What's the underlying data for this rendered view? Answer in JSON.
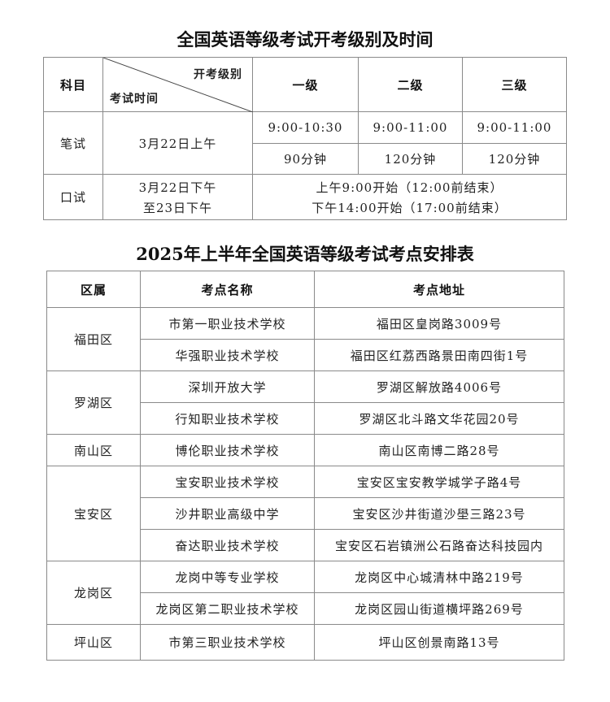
{
  "schedule": {
    "title": "全国英语等级考试开考级别及时间",
    "header": {
      "subject": "科目",
      "level_label": "开考级别",
      "time_label": "考试时间",
      "levels": [
        "一级",
        "二级",
        "三级"
      ]
    },
    "written": {
      "subject": "笔试",
      "date": "3月22日上午",
      "times": [
        "9:00-10:30",
        "9:00-11:00",
        "9:00-11:00"
      ],
      "durations": [
        "90分钟",
        "120分钟",
        "120分钟"
      ]
    },
    "oral": {
      "subject": "口试",
      "date_line1": "3月22日下午",
      "date_line2": "至23日下午",
      "session1": "上午9:00开始（12:00前结束）",
      "session2": "下午14:00开始（17:00前结束）"
    }
  },
  "venues": {
    "title": "2025年上半年全国英语等级考试考点安排表",
    "headers": [
      "区属",
      "考点名称",
      "考点地址"
    ],
    "districts": [
      "福田区",
      "罗湖区",
      "南山区",
      "宝安区",
      "龙岗区",
      "坪山区"
    ],
    "rows": [
      {
        "name": "市第一职业技术学校",
        "address": "福田区皇岗路3009号"
      },
      {
        "name": "华强职业技术学校",
        "address": "福田区红荔西路景田南四街1号"
      },
      {
        "name": "深圳开放大学",
        "address": "罗湖区解放路4006号"
      },
      {
        "name": "行知职业技术学校",
        "address": "罗湖区北斗路文华花园20号"
      },
      {
        "name": "博伦职业技术学校",
        "address": "南山区南博二路28号"
      },
      {
        "name": "宝安职业技术学校",
        "address": "宝安区宝安教学城学子路4号"
      },
      {
        "name": "沙井职业高级中学",
        "address": "宝安区沙井街道沙壆三路23号"
      },
      {
        "name": "奋达职业技术学校",
        "address": "宝安区石岩镇洲公石路奋达科技园内"
      },
      {
        "name": "龙岗中等专业学校",
        "address": "龙岗区中心城清林中路219号"
      },
      {
        "name": "龙岗区第二职业技术学校",
        "address": "龙岗区园山街道横坪路269号"
      },
      {
        "name": "市第三职业技术学校",
        "address": "坪山区创景南路13号"
      }
    ]
  }
}
